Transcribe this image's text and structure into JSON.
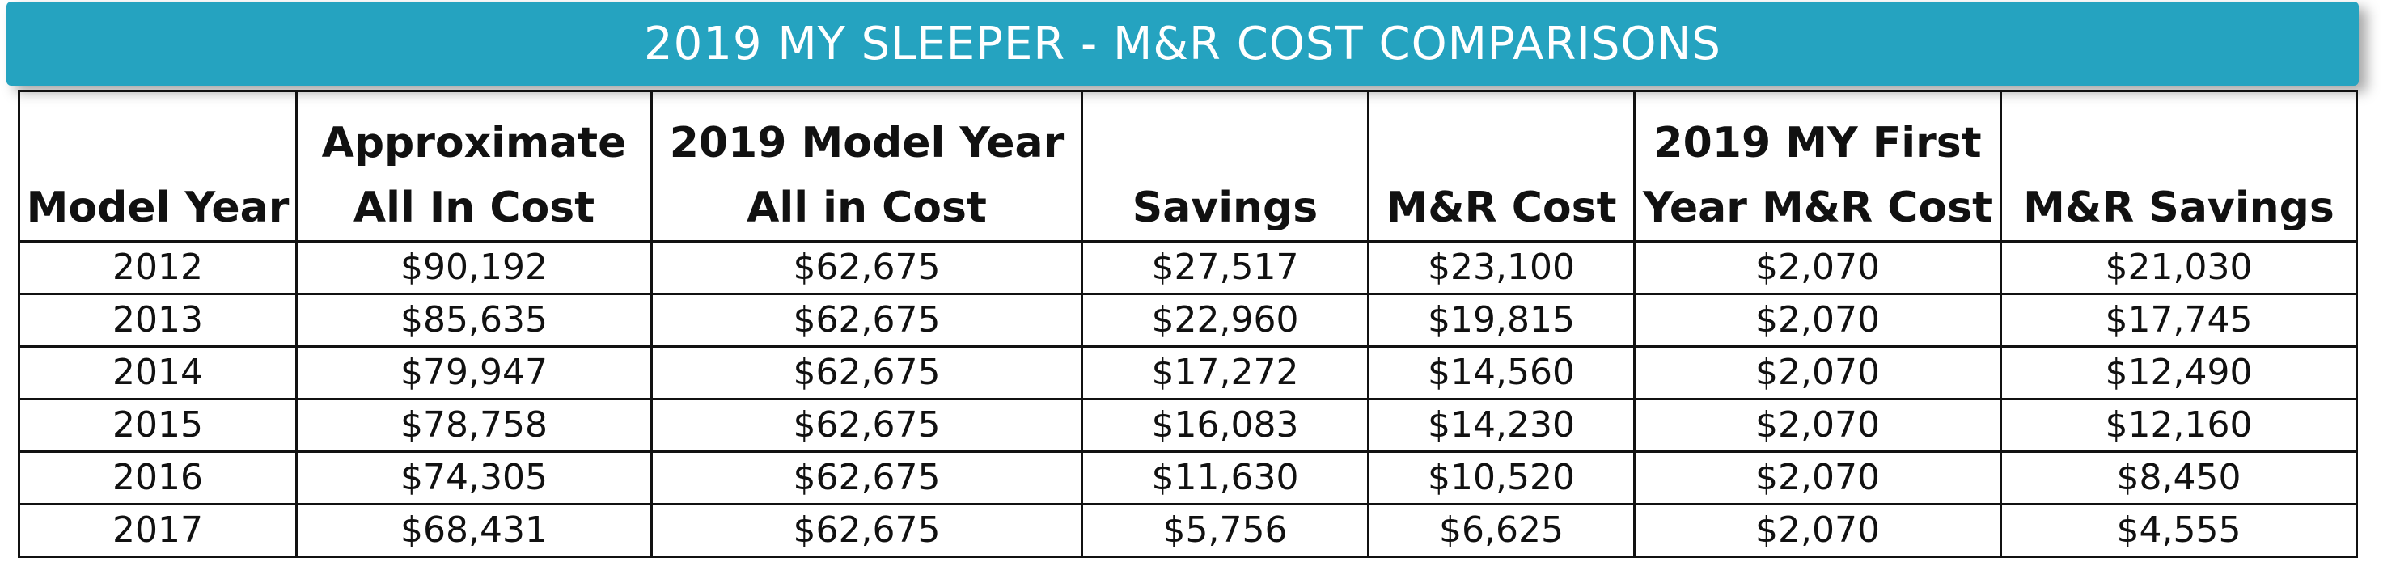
{
  "title": "2019 MY SLEEPER - M&R COST COMPARISONS",
  "colors": {
    "banner": "#25a3c0",
    "banner_text": "#ffffff",
    "border": "#111111"
  },
  "table": {
    "headers": [
      [
        "Model Year"
      ],
      [
        "Approximate",
        "All In Cost"
      ],
      [
        "2019 Model Year",
        "All in Cost"
      ],
      [
        "Savings"
      ],
      [
        "M&R Cost"
      ],
      [
        "2019 MY First",
        "Year M&R Cost"
      ],
      [
        "M&R Savings"
      ]
    ],
    "rows": [
      [
        "2012",
        "$90,192",
        "$62,675",
        "$27,517",
        "$23,100",
        "$2,070",
        "$21,030"
      ],
      [
        "2013",
        "$85,635",
        "$62,675",
        "$22,960",
        "$19,815",
        "$2,070",
        "$17,745"
      ],
      [
        "2014",
        "$79,947",
        "$62,675",
        "$17,272",
        "$14,560",
        "$2,070",
        "$12,490"
      ],
      [
        "2015",
        "$78,758",
        "$62,675",
        "$16,083",
        "$14,230",
        "$2,070",
        "$12,160"
      ],
      [
        "2016",
        "$74,305",
        "$62,675",
        "$11,630",
        "$10,520",
        "$2,070",
        "$8,450"
      ],
      [
        "2017",
        "$68,431",
        "$62,675",
        "$5,756",
        "$6,625",
        "$2,070",
        "$4,555"
      ]
    ]
  }
}
